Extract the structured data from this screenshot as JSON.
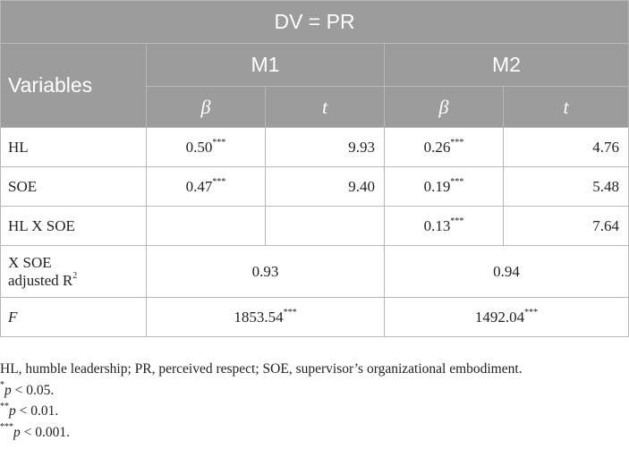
{
  "table": {
    "dv_label": "DV = PR",
    "variables_label": "Variables",
    "models": [
      "M1",
      "M2"
    ],
    "subheaders": [
      "β",
      "t",
      "β",
      "t"
    ],
    "rows": [
      {
        "label": "HL",
        "m1_beta": "0.50",
        "m1_beta_sig": "***",
        "m1_t": "9.93",
        "m2_beta": "0.26",
        "m2_beta_sig": "***",
        "m2_t": "4.76"
      },
      {
        "label": "SOE",
        "m1_beta": "0.47",
        "m1_beta_sig": "***",
        "m1_t": "9.40",
        "m2_beta": "0.19",
        "m2_beta_sig": "***",
        "m2_t": "5.48"
      },
      {
        "label": "HL X SOE",
        "m1_beta": "",
        "m1_beta_sig": "",
        "m1_t": "",
        "m2_beta": "0.13",
        "m2_beta_sig": "***",
        "m2_t": "7.64"
      }
    ],
    "r2_row": {
      "label_line1": "X SOE",
      "label_line2": "adjusted R",
      "label_sup": "2",
      "m1": "0.93",
      "m2": "0.94"
    },
    "f_row": {
      "label": "F",
      "m1": "1853.54",
      "m1_sig": "***",
      "m2": "1492.04",
      "m2_sig": "***"
    }
  },
  "notes": {
    "abbrev": "HL, humble leadership; PR, perceived respect; SOE, supervisor’s organizational embodiment.",
    "n1_stars": "*",
    "n1_p": "p",
    "n1_text": " < 0.05.",
    "n2_stars": "**",
    "n2_p": "p",
    "n2_text": " < 0.01.",
    "n3_stars": "***",
    "n3_p": "p",
    "n3_text": " < 0.001."
  }
}
